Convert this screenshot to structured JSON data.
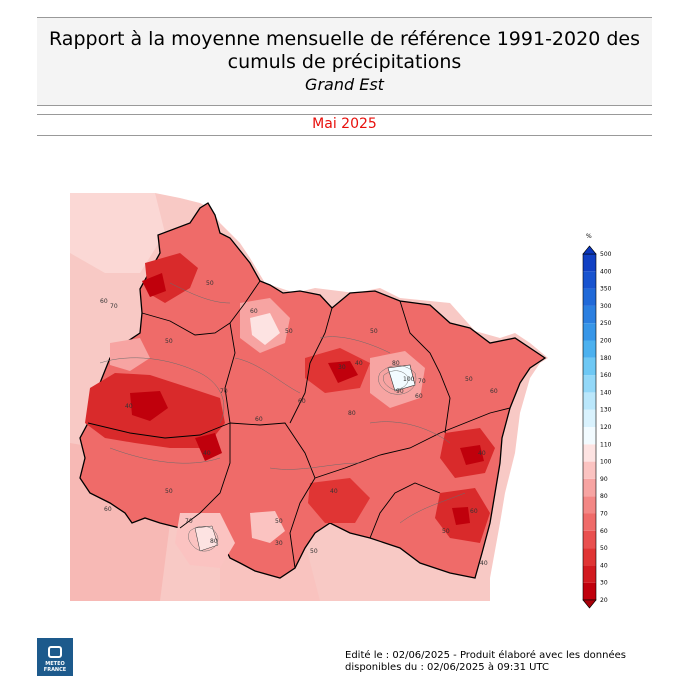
{
  "header": {
    "title_line1": "Rapport à la moyenne mensuelle de référence 1991-2020 des",
    "title_line2": "cumuls de précipitations",
    "region": "Grand Est",
    "period": "Mai 2025"
  },
  "legend": {
    "unit": "%",
    "levels": [
      "20",
      "30",
      "40",
      "50",
      "60",
      "70",
      "80",
      "90",
      "100",
      "110",
      "120",
      "130",
      "140",
      "160",
      "180",
      "200",
      "250",
      "300",
      "350",
      "400",
      "500"
    ],
    "colors": [
      "#c0000c",
      "#d21a1f",
      "#e03534",
      "#e9504f",
      "#ef6b69",
      "#f38785",
      "#f7a4a2",
      "#fbc3c1",
      "#fde3e2",
      "#f2fbff",
      "#d9f2fd",
      "#bae7fb",
      "#93d8f8",
      "#6ec8f4",
      "#4cb1ef",
      "#3796e8",
      "#2b7fe0",
      "#2069d8",
      "#1853cf",
      "#1140c3"
    ]
  },
  "map": {
    "contour_labels": [
      "50",
      "60",
      "70",
      "40",
      "50",
      "60",
      "50",
      "60",
      "30",
      "40",
      "50",
      "60",
      "70",
      "80",
      "90",
      "100",
      "50",
      "40",
      "60",
      "40",
      "50",
      "60",
      "70",
      "80",
      "50",
      "40",
      "30",
      "50",
      "60",
      "70",
      "80",
      "60",
      "50",
      "40"
    ]
  },
  "footer": {
    "line1": "Edité le : 02/06/2025 - Produit élaboré avec les données",
    "line2": "disponibles du : 02/06/2025 à 09:31 UTC"
  },
  "logo": {
    "line1": "METEO",
    "line2": "FRANCE"
  }
}
